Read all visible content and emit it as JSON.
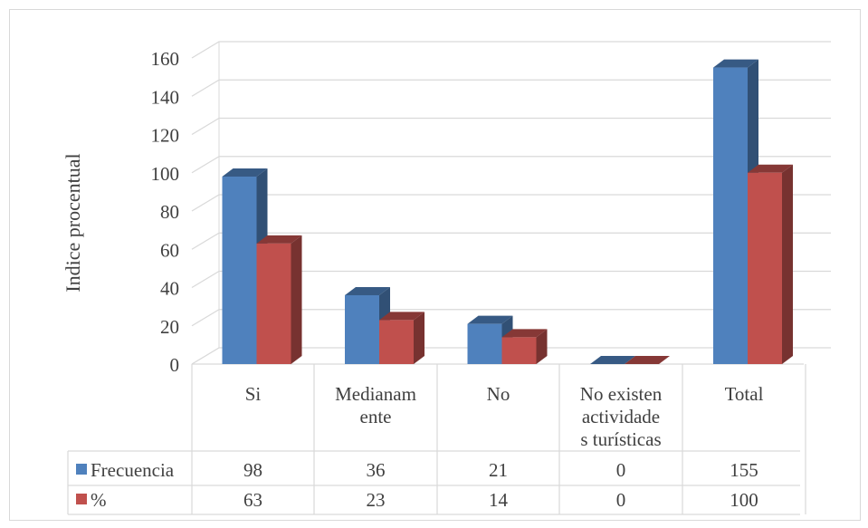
{
  "chart_data": {
    "type": "bar",
    "style": "3d-clustered-column-with-data-table",
    "ylabel": "Indice procentual",
    "ylim": [
      0,
      160
    ],
    "ytick_step": 20,
    "grid": true,
    "categories": [
      [
        "Si"
      ],
      [
        "Medianam",
        "ente"
      ],
      [
        "No"
      ],
      [
        "No existen",
        "actividade",
        "s turísticas"
      ],
      [
        "Total"
      ]
    ],
    "series": [
      {
        "name": "Frecuencia",
        "color": "#4f81bd",
        "values": [
          98,
          36,
          21,
          0,
          155
        ]
      },
      {
        "name": "%",
        "color": "#c0504d",
        "values": [
          63,
          23,
          14,
          0,
          100
        ]
      }
    ]
  }
}
